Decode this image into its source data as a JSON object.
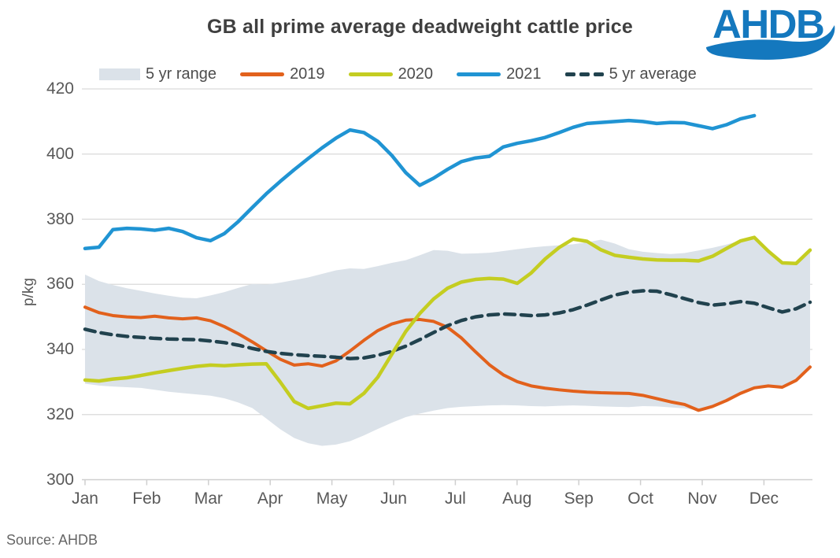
{
  "title": "GB all prime average deadweight cattle price",
  "logo": {
    "text": "AHDB",
    "color": "#1478be"
  },
  "source": "Source: AHDB",
  "y_axis": {
    "label": "p/kg",
    "ticks": [
      420,
      400,
      380,
      360,
      340,
      320,
      300
    ],
    "min": 300,
    "max": 420
  },
  "x_axis": {
    "months": [
      "Jan",
      "Feb",
      "Mar",
      "Apr",
      "May",
      "Jun",
      "Jul",
      "Aug",
      "Sep",
      "Oct",
      "Nov",
      "Dec"
    ]
  },
  "legend": {
    "items": [
      {
        "label": "5 yr range",
        "type": "band",
        "color": "#dbe2e9"
      },
      {
        "label": "2019",
        "type": "line",
        "color": "#e2611c"
      },
      {
        "label": "2020",
        "type": "line",
        "color": "#c4cd21"
      },
      {
        "label": "2021",
        "type": "line",
        "color": "#2094d3"
      },
      {
        "label": "5 yr average",
        "type": "dashed",
        "color": "#21424e"
      }
    ]
  },
  "chart_data": {
    "type": "line",
    "title": "GB all prime average deadweight cattle price",
    "ylabel": "p/kg",
    "ylim": [
      300,
      420
    ],
    "x_unit": "weeks",
    "weeks_span": 53,
    "grid": "horizontal",
    "legend_position": "top",
    "band": {
      "name": "5 yr range",
      "color": "#dbe2e9",
      "top": [
        363,
        361,
        359.8,
        358.8,
        358,
        357.2,
        356.5,
        355.9,
        355.7,
        356.6,
        357.6,
        358.9,
        360.1,
        359.9,
        360.5,
        361.3,
        362.1,
        363.2,
        364.3,
        364.9,
        364.7,
        365.6,
        366.6,
        367.4,
        368.9,
        370.5,
        370.3,
        369.4,
        369.5,
        369.7,
        370.2,
        370.8,
        371.3,
        371.7,
        372,
        372.3,
        372.9,
        373.7,
        372.5,
        370.8,
        370,
        369.6,
        369.3,
        369.6,
        370.4,
        371.2,
        372.2,
        373.4,
        374.4,
        370.2,
        366.6,
        366.4,
        370.5
      ],
      "bottom": [
        329.5,
        328.9,
        328.6,
        328.4,
        328.2,
        327.6,
        327,
        326.6,
        326.2,
        325.8,
        325,
        323.7,
        322,
        318.8,
        315.5,
        312.8,
        311.2,
        310.4,
        310.8,
        311.8,
        313.6,
        315.6,
        317.5,
        319.2,
        320.3,
        321.2,
        322,
        322.4,
        322.6,
        322.8,
        322.9,
        322.8,
        322.6,
        322.5,
        322.7,
        322.8,
        322.7,
        322.5,
        322.4,
        322.3,
        322.6,
        322.5,
        322.2,
        321.9,
        321.2,
        322.4,
        324.2,
        326.4,
        328.1,
        328.7,
        328.3,
        330.4,
        334.6
      ]
    },
    "series": [
      {
        "name": "2019",
        "color": "#e2611c",
        "width": 4,
        "dash": false,
        "values": [
          353,
          351.3,
          350.4,
          350,
          349.8,
          350.2,
          349.7,
          349.4,
          349.7,
          348.8,
          347,
          344.8,
          342.3,
          339.6,
          337,
          335.2,
          335.6,
          334.9,
          336.5,
          339.5,
          342.8,
          345.8,
          347.8,
          349,
          349.2,
          348.6,
          346.8,
          343.5,
          339.3,
          335.3,
          332.2,
          330.1,
          328.8,
          328.1,
          327.6,
          327.2,
          326.9,
          326.7,
          326.6,
          326.5,
          325.9,
          324.9,
          323.9,
          323.1,
          321.3,
          322.5,
          324.3,
          326.5,
          328.2,
          328.8,
          328.4,
          330.5,
          334.6
        ]
      },
      {
        "name": "5 yr average",
        "color": "#21424e",
        "width": 4.5,
        "dash": true,
        "values": [
          346.2,
          345.2,
          344.5,
          344,
          343.7,
          343.4,
          343.2,
          343.1,
          343,
          342.6,
          342.1,
          341.3,
          340.3,
          339.4,
          338.8,
          338.4,
          338.1,
          337.9,
          337.6,
          337.2,
          337.4,
          338.2,
          339.4,
          341,
          343,
          345.2,
          347.3,
          348.9,
          350,
          350.6,
          350.9,
          350.7,
          350.4,
          350.6,
          351.2,
          352.2,
          353.6,
          355.2,
          356.7,
          357.6,
          358,
          357.9,
          356.8,
          355.6,
          354.4,
          353.6,
          354,
          354.7,
          354.2,
          352.8,
          351.5,
          352.5,
          354.5
        ]
      },
      {
        "name": "2020",
        "color": "#c4cd21",
        "width": 4.5,
        "dash": false,
        "values": [
          330.6,
          330.3,
          330.9,
          331.3,
          332,
          332.8,
          333.5,
          334.2,
          334.8,
          335.2,
          335,
          335.3,
          335.5,
          335.6,
          330,
          324,
          321.9,
          322.7,
          323.5,
          323.3,
          326.5,
          331.5,
          338.5,
          345.5,
          351,
          355.5,
          358.8,
          360.7,
          361.5,
          361.8,
          361.6,
          360.3,
          363.5,
          367.8,
          371.3,
          373.9,
          373.2,
          370.6,
          368.9,
          368.3,
          367.8,
          367.5,
          367.4,
          367.4,
          367.2,
          368.6,
          371,
          373.3,
          374.4,
          370.2,
          366.6,
          366.4,
          370.5
        ]
      },
      {
        "name": "2021",
        "color": "#2094d3",
        "width": 4.5,
        "dash": false,
        "values": [
          371,
          371.4,
          376.8,
          377.2,
          377,
          376.6,
          377.2,
          376.2,
          374.3,
          373.4,
          375.6,
          379.3,
          383.6,
          387.8,
          391.6,
          395.2,
          398.6,
          401.9,
          404.9,
          407.4,
          406.6,
          403.9,
          399.6,
          394.3,
          390.4,
          392.6,
          395.3,
          397.7,
          398.8,
          399.3,
          402.2,
          403.3,
          404.1,
          405.1,
          406.6,
          408.2,
          409.4,
          409.7,
          410,
          410.3,
          410,
          409.4,
          409.7,
          409.6,
          408.7,
          407.8,
          409,
          410.8,
          411.8
        ]
      }
    ]
  }
}
